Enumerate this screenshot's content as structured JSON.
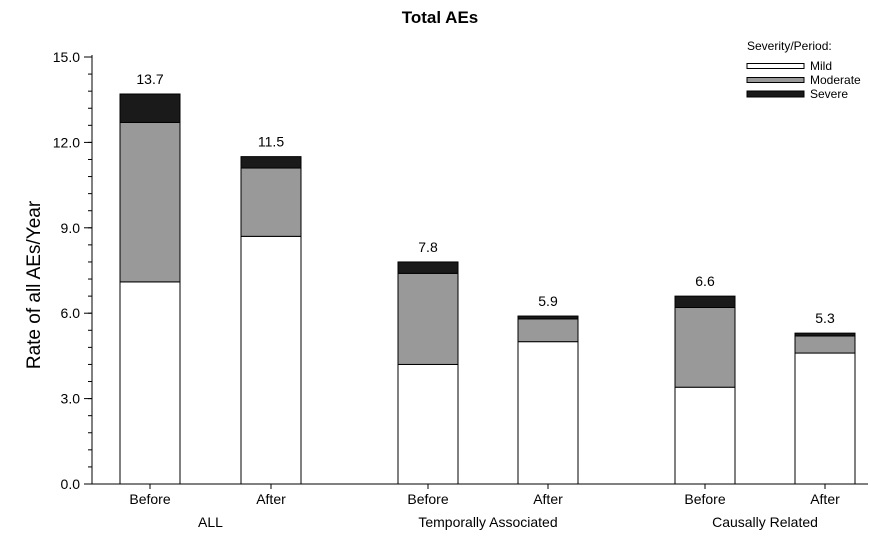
{
  "chart_data": {
    "type": "bar",
    "stacked": true,
    "title": "Total AEs",
    "ylabel": "Rate of all AEs/Year",
    "xlabel": "",
    "ylim": [
      0,
      15
    ],
    "yticks": [
      "0.0",
      "3.0",
      "6.0",
      "9.0",
      "12.0",
      "15.0"
    ],
    "groups": [
      "ALL",
      "Temporally Associated",
      "Causally Related"
    ],
    "categories": [
      "Before",
      "After",
      "Before",
      "After",
      "Before",
      "After"
    ],
    "totals": [
      "13.7",
      "11.5",
      "7.8",
      "5.9",
      "6.6",
      "5.3"
    ],
    "legend": {
      "title": "Severity/Period:",
      "placement": "top-right"
    },
    "series": [
      {
        "name": "Mild",
        "color": "#ffffff",
        "values": [
          7.1,
          8.7,
          4.2,
          5.0,
          3.4,
          4.6
        ]
      },
      {
        "name": "Moderate",
        "color": "#999999",
        "values": [
          5.6,
          2.4,
          3.2,
          0.8,
          2.8,
          0.6
        ]
      },
      {
        "name": "Severe",
        "color": "#1a1a1a",
        "values": [
          1.0,
          0.4,
          0.4,
          0.1,
          0.4,
          0.1
        ]
      }
    ],
    "grid": false
  }
}
